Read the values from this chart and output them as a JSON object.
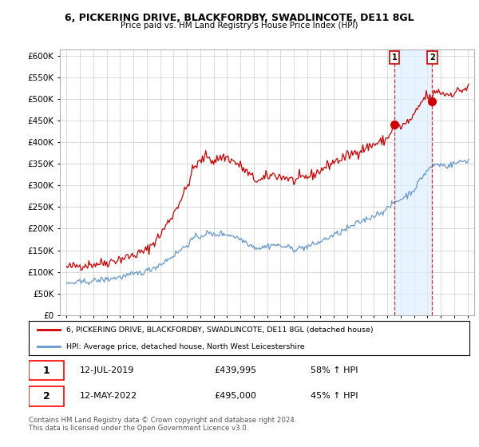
{
  "title": "6, PICKERING DRIVE, BLACKFORDBY, SWADLINCOTE, DE11 8GL",
  "subtitle": "Price paid vs. HM Land Registry's House Price Index (HPI)",
  "ytick_values": [
    0,
    50000,
    100000,
    150000,
    200000,
    250000,
    300000,
    350000,
    400000,
    450000,
    500000,
    550000,
    600000
  ],
  "ylim": [
    0,
    615000
  ],
  "red_color": "#cc0000",
  "blue_color": "#6699cc",
  "blue_shade_color": "#ddeeff",
  "background_color": "#ffffff",
  "grid_color": "#cccccc",
  "legend_label_red": "6, PICKERING DRIVE, BLACKFORDBY, SWADLINCOTE, DE11 8GL (detached house)",
  "legend_label_blue": "HPI: Average price, detached house, North West Leicestershire",
  "transaction1_date": "12-JUL-2019",
  "transaction1_price": "£439,995",
  "transaction1_pct": "58% ↑ HPI",
  "transaction2_date": "12-MAY-2022",
  "transaction2_price": "£495,000",
  "transaction2_pct": "45% ↑ HPI",
  "footer": "Contains HM Land Registry data © Crown copyright and database right 2024.\nThis data is licensed under the Open Government Licence v3.0.",
  "marker1_x": 2019.53,
  "marker1_y": 439995,
  "marker2_x": 2022.36,
  "marker2_y": 495000,
  "xlim_left": 1994.5,
  "xlim_right": 2025.5
}
